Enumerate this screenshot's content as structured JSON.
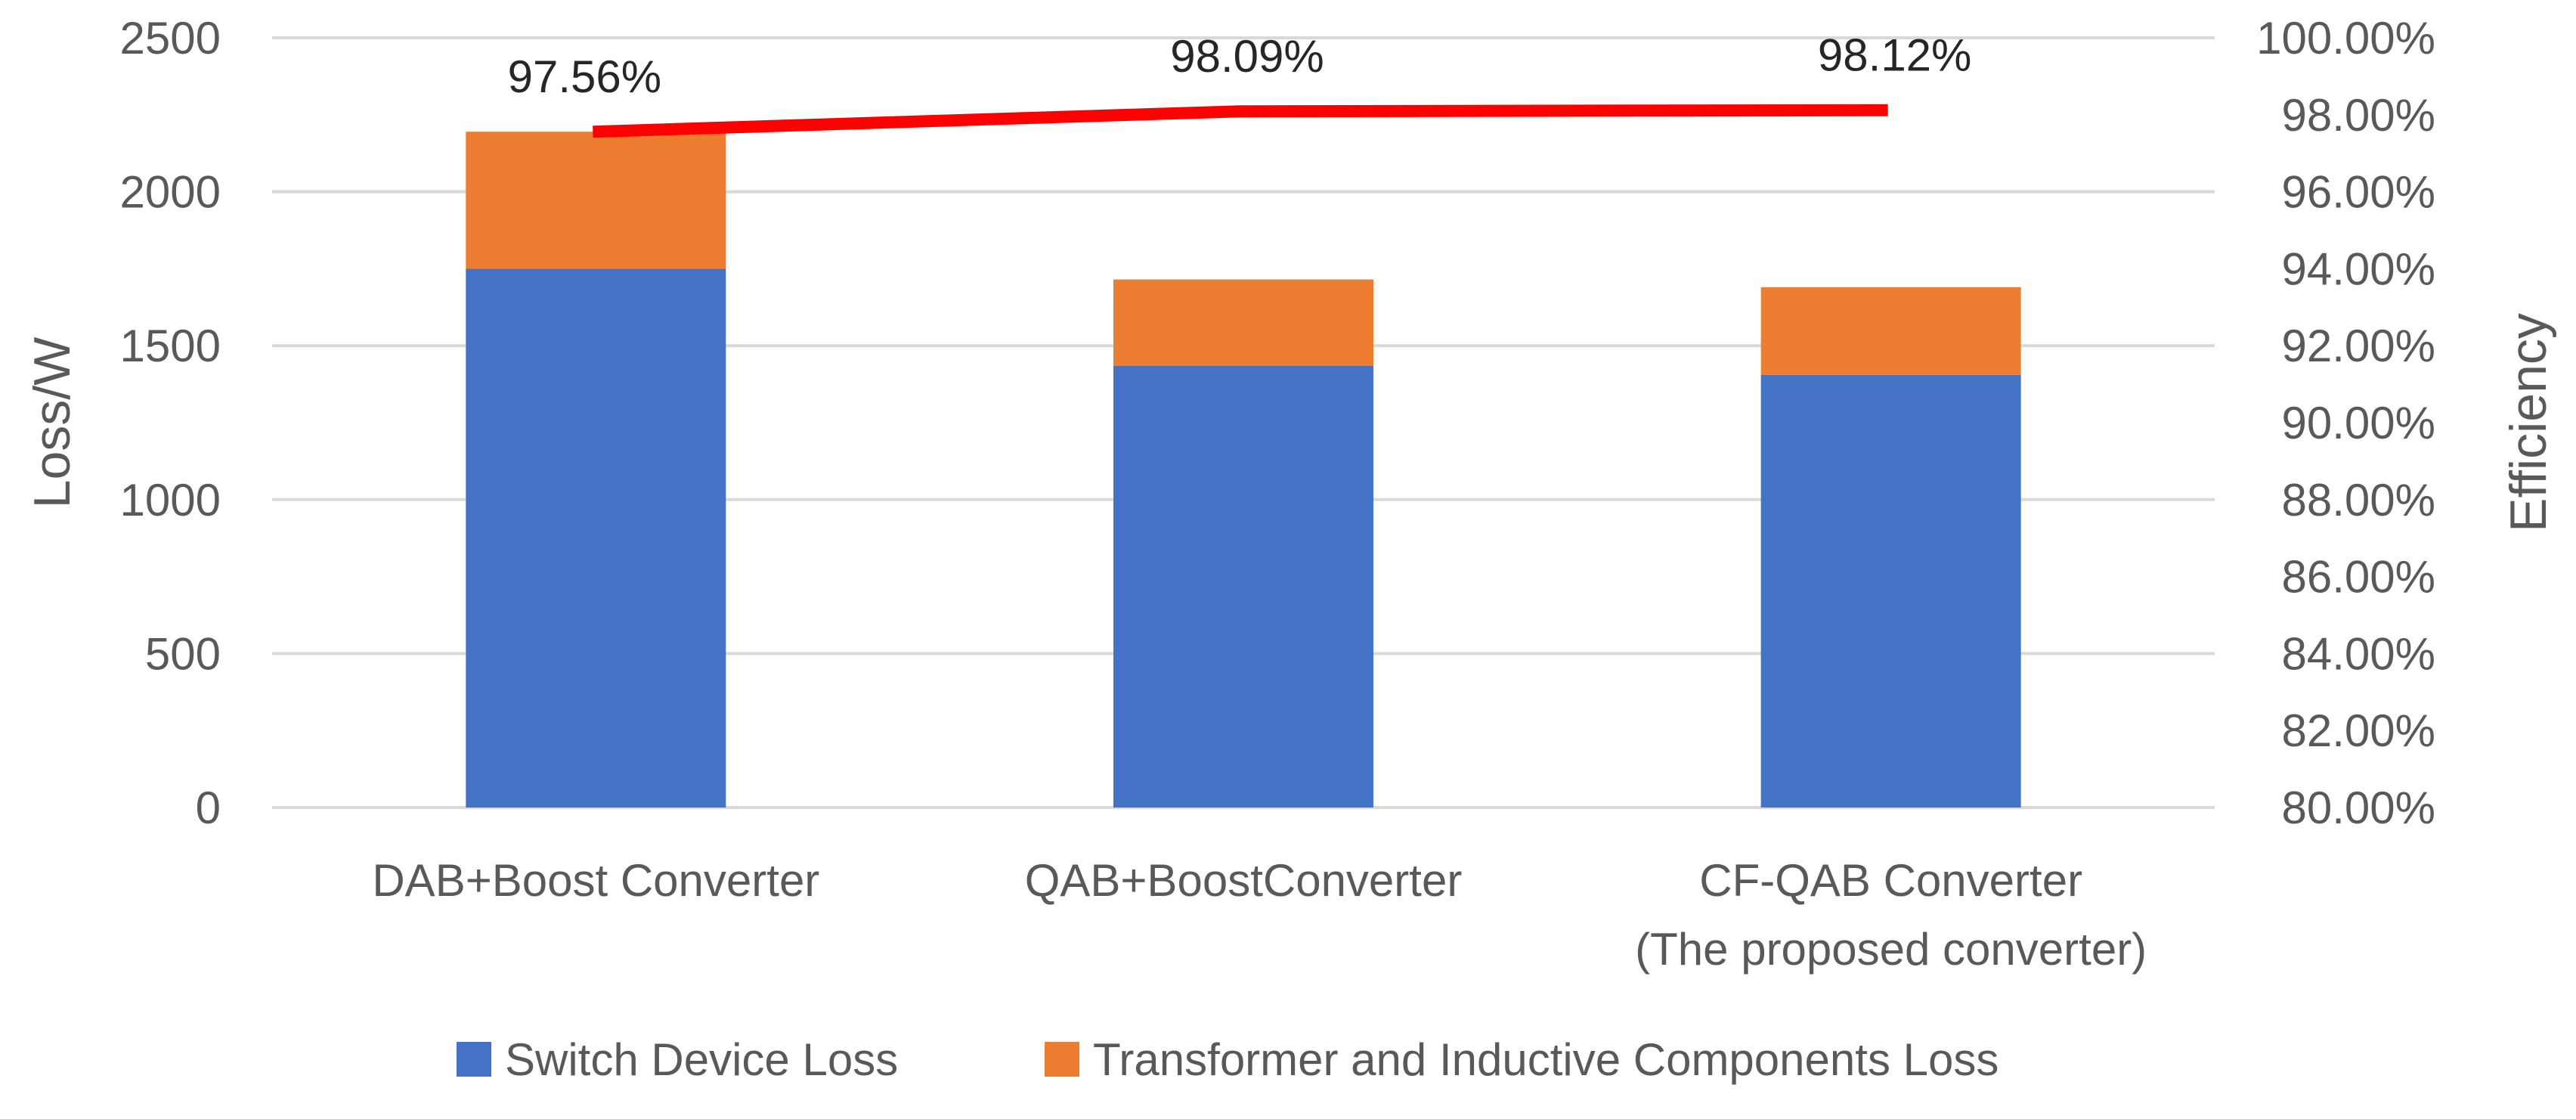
{
  "chart_data": {
    "type": "bar",
    "stacked": true,
    "categories": [
      [
        "DAB+Boost Converter"
      ],
      [
        "QAB+BoostConverter"
      ],
      [
        "CF-QAB Converter",
        "(The proposed converter)"
      ]
    ],
    "series": [
      {
        "name": "Switch Device Loss",
        "color": "#4472c4",
        "values": [
          1750,
          1435,
          1405
        ]
      },
      {
        "name": "Transformer and Inductive Components Loss",
        "color": "#ed7d31",
        "values": [
          445,
          280,
          285
        ]
      }
    ],
    "efficiency": {
      "color": "#ff0000",
      "values": [
        97.56,
        98.09,
        98.12
      ],
      "labels": [
        "97.56%",
        "98.09%",
        "98.12%"
      ]
    },
    "ylabel": "Loss/W",
    "ylim": [
      0,
      2500
    ],
    "yticks": [
      "0",
      "500",
      "1000",
      "1500",
      "2000",
      "2500"
    ],
    "y2label": "Efficiency",
    "y2lim": [
      80,
      100
    ],
    "y2ticks": [
      "80.00%",
      "82.00%",
      "84.00%",
      "86.00%",
      "88.00%",
      "90.00%",
      "92.00%",
      "94.00%",
      "96.00%",
      "98.00%",
      "100.00%"
    ],
    "grid": true,
    "legend_position": "bottom"
  }
}
